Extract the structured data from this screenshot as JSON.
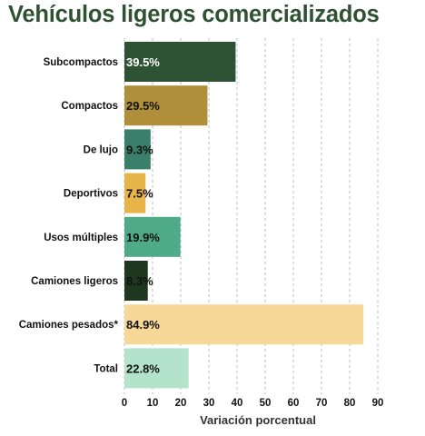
{
  "chart_data": {
    "type": "bar",
    "orientation": "horizontal",
    "title": "Vehículos ligeros comercializados",
    "xlabel": "Variación porcentual",
    "ylabel": "",
    "xlim": [
      0,
      90
    ],
    "xticks": [
      0,
      10,
      20,
      30,
      40,
      50,
      60,
      70,
      80,
      90
    ],
    "grid": "vertical dashed",
    "legend": "none",
    "categories": [
      "Subcompactos",
      "Compactos",
      "De lujo",
      "Deportivos",
      "Usos múltiples",
      "Camiones ligeros",
      "Camiones pesados*",
      "Total"
    ],
    "values": [
      39.5,
      29.5,
      9.3,
      7.5,
      19.9,
      8.3,
      84.9,
      22.8
    ],
    "value_labels": [
      "39.5%",
      "29.5%",
      "9.3%",
      "7.5%",
      "19.9%",
      "8.3%",
      "84.9%",
      "22.8%"
    ],
    "bar_colors": [
      "#2e5234",
      "#b08f3a",
      "#3a7f6a",
      "#e6b448",
      "#4faa8a",
      "#1e3820",
      "#f7d899",
      "#b3e4cb"
    ],
    "label_inside": [
      true,
      false,
      false,
      false,
      false,
      false,
      false,
      false
    ],
    "title_color": "#2f5233"
  }
}
